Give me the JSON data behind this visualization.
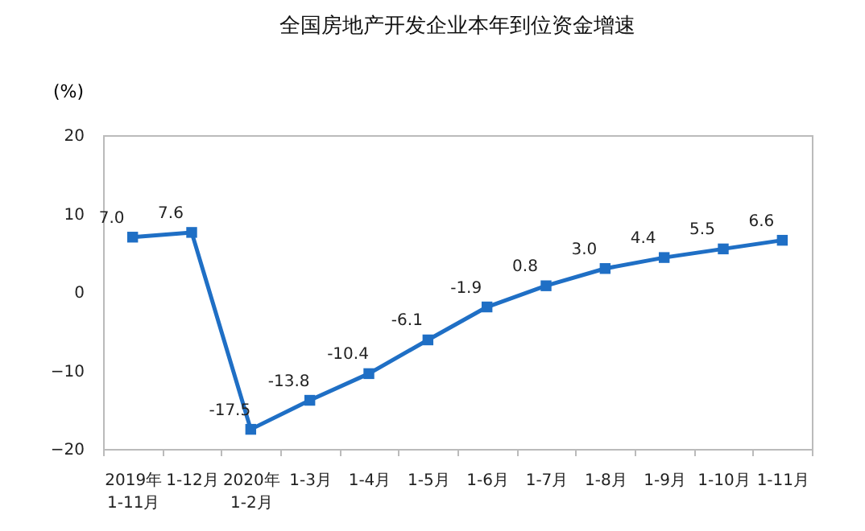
{
  "chart_data": {
    "type": "line",
    "title": "全国房地产开发企业本年到位资金增速",
    "ylabel": "(%)",
    "categories": [
      "2019年\n1-11月",
      "1-12月",
      "2020年\n1-2月",
      "1-3月",
      "1-4月",
      "1-5月",
      "1-6月",
      "1-7月",
      "1-8月",
      "1-9月",
      "1-10月",
      "1-11月"
    ],
    "series": [
      {
        "color": "#1f6fc5",
        "values": [
          7.0,
          7.6,
          -17.5,
          -13.8,
          -10.4,
          -6.1,
          -1.9,
          0.8,
          3.0,
          4.4,
          5.5,
          6.6
        ],
        "value_labels": [
          "7.0",
          "7.6",
          "-17.5",
          "-13.8",
          "-10.4",
          "-6.1",
          "-1.9",
          "0.8",
          "3.0",
          "4.4",
          "5.5",
          "6.6"
        ]
      }
    ],
    "ylim": [
      -20,
      20
    ],
    "yticks": [
      -20,
      -10,
      0,
      10,
      20
    ],
    "grid": false,
    "legend": false,
    "marker": "square",
    "line_style": "solid"
  }
}
